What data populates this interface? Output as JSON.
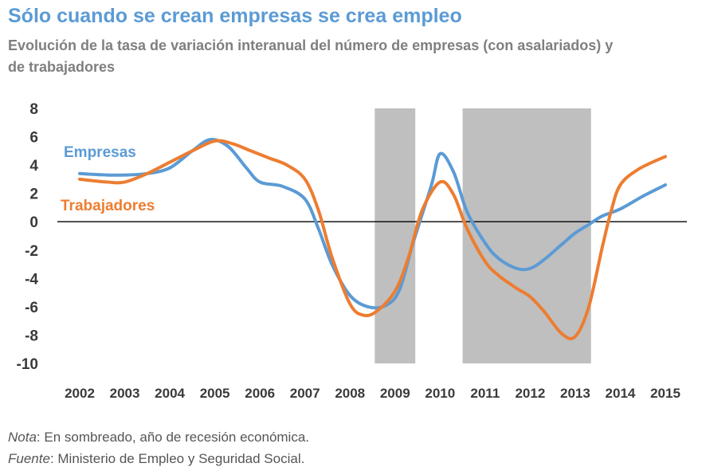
{
  "header": {
    "title": "Sólo cuando se crean empresas se crea empleo",
    "subtitle": "Evolución de la tasa de variación interanual del número de empresas (con asalariados) y de trabajadores"
  },
  "chart_data": {
    "type": "line",
    "xlabel": "",
    "ylabel": "",
    "ylim": [
      -10,
      8
    ],
    "y_ticks": [
      "8",
      "6",
      "4",
      "2",
      "0",
      "-2",
      "-4",
      "-6",
      "-8",
      "-10"
    ],
    "y_tick_values": [
      8,
      6,
      4,
      2,
      0,
      -2,
      -4,
      -6,
      -8,
      -10
    ],
    "categories": [
      "2002",
      "2003",
      "2004",
      "2005",
      "2006",
      "2007",
      "2008",
      "2009",
      "2010",
      "2011",
      "2012",
      "2013",
      "2014",
      "2015"
    ],
    "zero_line": true,
    "recession_shading": [
      {
        "from": 2008.55,
        "to": 2009.45
      },
      {
        "from": 2010.5,
        "to": 2013.35
      }
    ],
    "series": [
      {
        "name": "Empresas",
        "color": "#5b9bd5",
        "x": [
          2002,
          2002.6,
          2003,
          2003.5,
          2004,
          2004.5,
          2004.9,
          2005.3,
          2005.7,
          2006.0,
          2006.5,
          2007.0,
          2007.3,
          2007.6,
          2008.0,
          2008.4,
          2008.8,
          2009.1,
          2009.4,
          2009.8,
          2010.0,
          2010.3,
          2010.6,
          2011.0,
          2011.3,
          2011.7,
          2012.0,
          2012.3,
          2012.7,
          2013.0,
          2013.3,
          2013.6,
          2014.0,
          2014.5,
          2015.0
        ],
        "values": [
          3.4,
          3.3,
          3.3,
          3.4,
          3.8,
          5.0,
          5.8,
          5.3,
          3.8,
          2.8,
          2.5,
          1.6,
          -0.5,
          -3.0,
          -5.2,
          -6.0,
          -5.9,
          -4.8,
          -1.5,
          2.5,
          4.8,
          3.5,
          0.7,
          -1.5,
          -2.6,
          -3.3,
          -3.3,
          -2.7,
          -1.6,
          -0.8,
          -0.2,
          0.4,
          0.9,
          1.8,
          2.6
        ]
      },
      {
        "name": "Trabajadores",
        "color": "#ed7d31",
        "x": [
          2002,
          2002.6,
          2003,
          2003.5,
          2004,
          2004.5,
          2005.0,
          2005.4,
          2005.8,
          2006.2,
          2006.6,
          2007.0,
          2007.3,
          2007.6,
          2008.0,
          2008.3,
          2008.6,
          2009.0,
          2009.3,
          2009.6,
          2010.0,
          2010.3,
          2010.6,
          2011.0,
          2011.3,
          2011.7,
          2012.0,
          2012.3,
          2012.7,
          2013.0,
          2013.3,
          2013.6,
          2013.8,
          2014.0,
          2014.4,
          2015.0
        ],
        "values": [
          3.0,
          2.8,
          2.8,
          3.4,
          4.2,
          5.0,
          5.7,
          5.5,
          5.0,
          4.5,
          4.0,
          3.0,
          0.8,
          -2.5,
          -5.8,
          -6.6,
          -6.3,
          -4.9,
          -2.5,
          0.8,
          2.8,
          1.9,
          -0.5,
          -2.8,
          -3.8,
          -4.7,
          -5.3,
          -6.3,
          -7.9,
          -8.1,
          -6.0,
          -1.8,
          0.8,
          2.6,
          3.7,
          4.6
        ]
      }
    ]
  },
  "notes": {
    "nota_label": "Nota",
    "nota_text": ": En sombreado, año de recesión económica.",
    "fuente_label": "Fuente",
    "fuente_text": ": Ministerio de Empleo y Seguridad Social."
  }
}
